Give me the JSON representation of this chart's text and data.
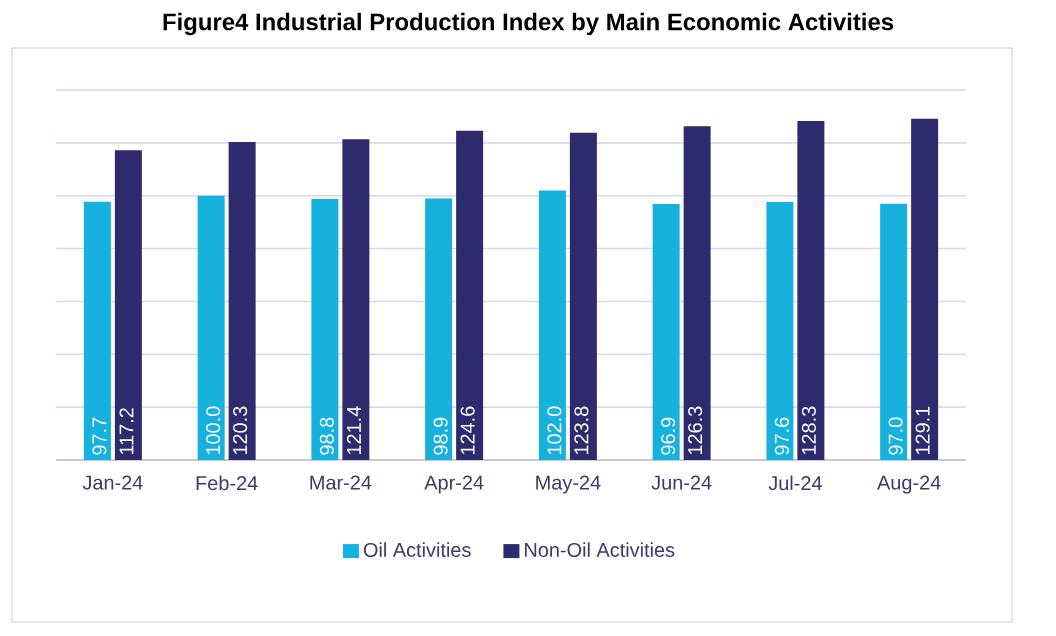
{
  "chart_data": {
    "type": "bar",
    "title": "Figure4  Industrial Production Index by Main Economic Activities",
    "categories": [
      "Jan-24",
      "Feb-24",
      "Mar-24",
      "Apr-24",
      "May-24",
      "Jun-24",
      "Jul-24",
      "Aug-24"
    ],
    "series": [
      {
        "name": "Oil Activities",
        "color": "#16b1dc",
        "values": [
          97.7,
          100.0,
          98.8,
          98.9,
          102.0,
          96.9,
          97.6,
          97.0
        ],
        "value_labels": [
          "97.7",
          "100.0",
          "98.8",
          "98.9",
          "102.0",
          "96.9",
          "97.6",
          "97.0"
        ]
      },
      {
        "name": "Non-Oil Activities",
        "color": "#2d2a6e",
        "values": [
          117.2,
          120.3,
          121.4,
          124.6,
          123.8,
          126.3,
          128.3,
          129.1
        ],
        "value_labels": [
          "117.2",
          "120.3",
          "121.4",
          "124.6",
          "123.8",
          "126.3",
          "128.3",
          "129.1"
        ]
      }
    ],
    "ylim": [
      0,
      140
    ],
    "tick_labels": "x",
    "grid": "y",
    "legend": "bottom"
  }
}
